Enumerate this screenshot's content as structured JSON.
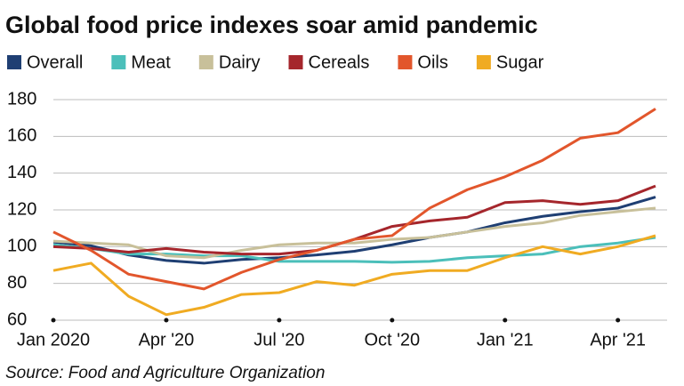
{
  "chart_data": {
    "type": "line",
    "title": "Global food price indexes soar amid pandemic",
    "source": "Source: Food and Agriculture Organization",
    "categories": [
      "Jan 2020",
      null,
      null,
      "Apr '20",
      null,
      null,
      "Jul '20",
      null,
      null,
      "Oct '20",
      null,
      null,
      "Jan '21",
      null,
      null,
      "Apr '21",
      null
    ],
    "series": [
      {
        "name": "Overall",
        "color": "#1f3f73",
        "values": [
          102.5,
          100.5,
          95.5,
          92.5,
          91,
          93,
          94,
          95.5,
          97.5,
          101,
          105,
          108,
          113,
          116.5,
          119,
          121,
          127
        ]
      },
      {
        "name": "Meat",
        "color": "#4bbfba",
        "values": [
          101,
          99,
          96,
          96,
          95,
          95,
          92,
          92,
          92,
          91.5,
          92,
          94,
          95,
          96,
          100,
          102,
          105
        ]
      },
      {
        "name": "Dairy",
        "color": "#c8c09a",
        "values": [
          103,
          102,
          101,
          95,
          94,
          98,
          101,
          102,
          102,
          104,
          105,
          108,
          111,
          113,
          117,
          119,
          121
        ]
      },
      {
        "name": "Cereals",
        "color": "#a5262c",
        "values": [
          100,
          99,
          97,
          99,
          97,
          96,
          96,
          98,
          104,
          111,
          114,
          116,
          124,
          125,
          123,
          125,
          133
        ]
      },
      {
        "name": "Oils",
        "color": "#e2562c",
        "values": [
          108,
          98,
          85,
          81,
          77,
          86,
          93,
          98,
          104,
          106,
          121,
          131,
          138,
          147,
          159,
          162,
          175
        ]
      },
      {
        "name": "Sugar",
        "color": "#f0ab22",
        "values": [
          87,
          91,
          73,
          63,
          67,
          74,
          75,
          81,
          79,
          85,
          87,
          87,
          94,
          100,
          96,
          100,
          106
        ]
      }
    ],
    "ylim": [
      60,
      180
    ],
    "yticks": [
      60,
      80,
      100,
      120,
      140,
      160,
      180
    ],
    "grid": true
  }
}
